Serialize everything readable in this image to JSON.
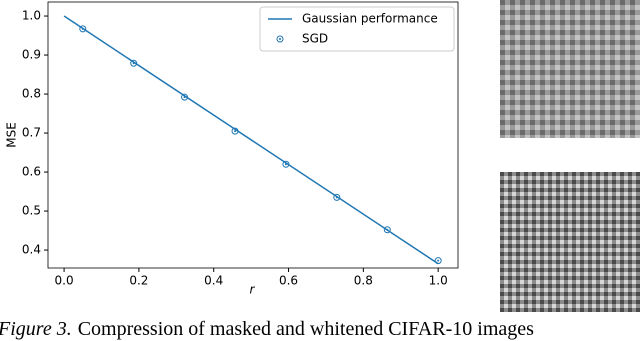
{
  "chart_data": {
    "type": "line",
    "xlabel": "r",
    "ylabel": "MSE",
    "xlim": [
      -0.043,
      1.053
    ],
    "ylim": [
      0.354,
      1.036
    ],
    "xticks": [
      {
        "value": 0,
        "label": "0.0"
      },
      0.2,
      0.4,
      0.6,
      0.8,
      {
        "value": 1,
        "label": "1.0"
      }
    ],
    "yticks": [
      0.4,
      0.5,
      0.6,
      0.7,
      0.8,
      0.9,
      {
        "value": 1,
        "label": "1.0"
      }
    ],
    "legend": "upper right",
    "series": [
      {
        "name": "Gaussian performance",
        "color": "#1f77b4",
        "style": "line",
        "x": [
          0,
          1
        ],
        "values": [
          1.0,
          0.365
        ]
      },
      {
        "name": "SGD",
        "color": "#1f77b4",
        "style": "marker",
        "x": [
          0.05,
          0.186,
          0.322,
          0.457,
          0.593,
          0.729,
          0.864,
          1.0
        ],
        "values": [
          0.967,
          0.879,
          0.792,
          0.705,
          0.62,
          0.535,
          0.452,
          0.373
        ]
      }
    ]
  },
  "caption": {
    "label": "Figure 3.",
    "text": "Compression of masked and whitened CIFAR-10 images"
  }
}
